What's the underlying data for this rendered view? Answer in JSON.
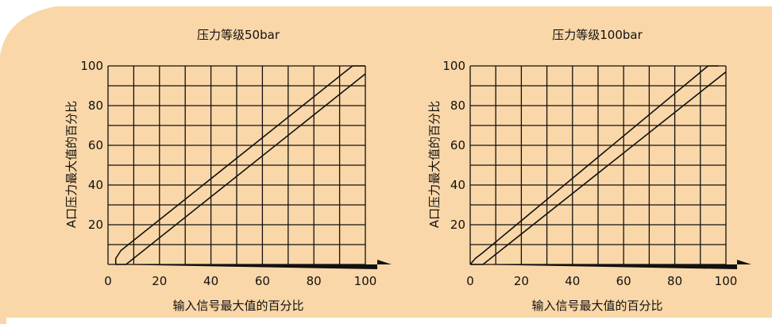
{
  "colors": {
    "background": "#fad7a8",
    "grid": "#111111",
    "line": "#111111"
  },
  "chart_data": [
    {
      "type": "line",
      "title": "压力等级50bar",
      "xlabel": "输入信号最大值的百分比",
      "ylabel": "A口压力最大值的百分比",
      "xlim": [
        0,
        100
      ],
      "ylim": [
        0,
        100
      ],
      "x_ticks": [
        "0",
        "20",
        "40",
        "60",
        "80",
        "100"
      ],
      "y_ticks": [
        "20",
        "40",
        "60",
        "80",
        "100"
      ],
      "grid": true,
      "series": [
        {
          "x": [
            3,
            3,
            5,
            95,
            100
          ],
          "y": [
            0,
            3,
            7,
            100,
            100
          ]
        },
        {
          "x": [
            3,
            7,
            100
          ],
          "y": [
            0,
            0,
            96
          ]
        }
      ]
    },
    {
      "type": "line",
      "title": "压力等级100bar",
      "xlabel": "输入信号最大值的百分比",
      "ylabel": "A口压力最大值的百分比",
      "xlim": [
        0,
        100
      ],
      "ylim": [
        0,
        100
      ],
      "x_ticks": [
        "0",
        "20",
        "40",
        "60",
        "80",
        "100"
      ],
      "y_ticks": [
        "20",
        "40",
        "60",
        "80",
        "100"
      ],
      "grid": true,
      "series": [
        {
          "x": [
            0,
            2,
            5,
            93,
            97
          ],
          "y": [
            0,
            3,
            6,
            100,
            100
          ]
        },
        {
          "x": [
            0,
            5,
            100
          ],
          "y": [
            0,
            0,
            97
          ]
        }
      ]
    }
  ]
}
